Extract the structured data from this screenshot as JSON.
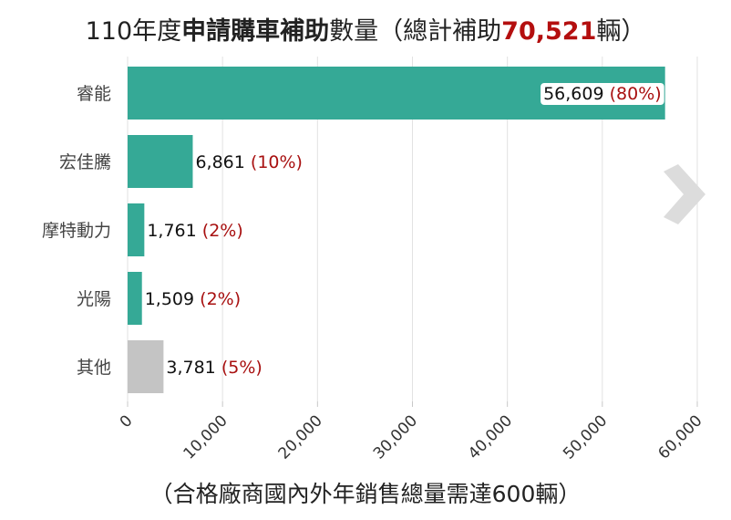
{
  "title": {
    "prefix": "110年度",
    "bold": "申請購車補助",
    "middle": "數量（總計補助",
    "total": "70,521",
    "suffix": "輛）"
  },
  "footer": "（合格廠商國內外年銷售總量需達600輛）",
  "colors": {
    "bar": "#35a996",
    "other_bar": "#c4c4c4",
    "pct": "#a81010",
    "grid": "#e2e2e2",
    "arrow": "#dcdcdc"
  },
  "chart_data": {
    "type": "bar",
    "orientation": "horizontal",
    "title": "110年度申請購車補助數量（總計補助70,521輛）",
    "categories": [
      "睿能",
      "宏佳騰",
      "摩特動力",
      "光陽",
      "其他"
    ],
    "values": [
      56609,
      6861,
      1761,
      1509,
      3781
    ],
    "value_labels": [
      "56,609",
      "6,861",
      "1,761",
      "1,509",
      "3,781"
    ],
    "percent_labels": [
      "(80%)",
      "(10%)",
      "(2%)",
      "(2%)",
      "(5%)"
    ],
    "xlim": [
      0,
      60000
    ],
    "xticks": [
      0,
      10000,
      20000,
      30000,
      40000,
      50000,
      60000
    ],
    "xtick_labels": [
      "0",
      "10,000",
      "20,000",
      "30,000",
      "40,000",
      "50,000",
      "60,000"
    ],
    "grid": true
  },
  "next_icon": "chevron-right-icon"
}
